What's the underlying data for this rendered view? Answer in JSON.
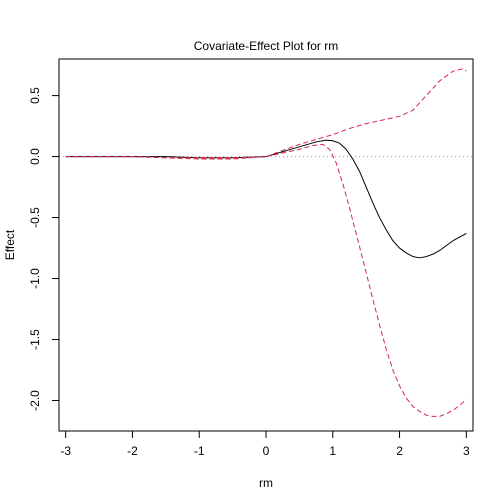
{
  "chart_data": {
    "type": "line",
    "title": "Covariate-Effect Plot for rm",
    "xlabel": "rm",
    "ylabel": "Effect",
    "xlim": [
      -3.1,
      3.1
    ],
    "ylim": [
      -2.25,
      0.8
    ],
    "x_ticks": [
      -3,
      -2,
      -1,
      0,
      1,
      2,
      3
    ],
    "x_tick_labels": [
      "-3",
      "-2",
      "-1",
      "0",
      "1",
      "2",
      "3"
    ],
    "y_ticks": [
      -2.0,
      -1.5,
      -1.0,
      -0.5,
      0.0,
      0.5
    ],
    "y_tick_labels": [
      "-2.0",
      "-1.5",
      "-1.0",
      "-0.5",
      "0.0",
      "0.5"
    ],
    "reference_line": {
      "y": 0,
      "style": "dotted",
      "color": "#999999"
    },
    "grid": false,
    "legend": "none",
    "series": [
      {
        "role": "estimate",
        "color": "#000000",
        "style": "solid",
        "x": [
          -3.0,
          -2.5,
          -2.0,
          -1.5,
          -1.0,
          -0.5,
          0.0,
          0.25,
          0.5,
          0.75,
          0.9,
          1.0,
          1.1,
          1.2,
          1.3,
          1.4,
          1.5,
          1.6,
          1.7,
          1.8,
          1.9,
          2.0,
          2.1,
          2.2,
          2.3,
          2.4,
          2.5,
          2.6,
          2.7,
          2.8,
          2.9,
          3.0
        ],
        "y": [
          0.0,
          0.0,
          0.0,
          0.0,
          -0.01,
          -0.01,
          0.0,
          0.04,
          0.08,
          0.12,
          0.135,
          0.13,
          0.11,
          0.06,
          -0.02,
          -0.12,
          -0.25,
          -0.38,
          -0.5,
          -0.6,
          -0.69,
          -0.75,
          -0.79,
          -0.82,
          -0.83,
          -0.82,
          -0.8,
          -0.77,
          -0.73,
          -0.69,
          -0.66,
          -0.63
        ]
      },
      {
        "role": "upper-band",
        "color": "#d7274b",
        "style": "dashed",
        "x": [
          -3.0,
          -2.5,
          -2.0,
          -1.5,
          -1.0,
          -0.5,
          0.0,
          0.25,
          0.5,
          0.75,
          1.0,
          1.25,
          1.5,
          1.75,
          2.0,
          2.2,
          2.4,
          2.6,
          2.8,
          2.95,
          3.0
        ],
        "y": [
          0.0,
          0.0,
          0.0,
          -0.01,
          -0.01,
          -0.01,
          0.0,
          0.05,
          0.1,
          0.14,
          0.18,
          0.23,
          0.27,
          0.3,
          0.33,
          0.38,
          0.5,
          0.62,
          0.7,
          0.72,
          0.7
        ]
      },
      {
        "role": "lower-band",
        "color": "#d7274b",
        "style": "dashed",
        "x": [
          -3.0,
          -2.5,
          -2.0,
          -1.5,
          -1.0,
          -0.5,
          0.0,
          0.25,
          0.5,
          0.7,
          0.85,
          0.95,
          1.05,
          1.15,
          1.25,
          1.35,
          1.5,
          1.6,
          1.7,
          1.8,
          1.9,
          2.0,
          2.1,
          2.2,
          2.3,
          2.4,
          2.5,
          2.6,
          2.7,
          2.8,
          2.9,
          3.0
        ],
        "y": [
          0.0,
          0.0,
          0.0,
          -0.01,
          -0.02,
          -0.02,
          0.0,
          0.03,
          0.06,
          0.09,
          0.1,
          0.06,
          -0.05,
          -0.22,
          -0.42,
          -0.63,
          -0.95,
          -1.17,
          -1.38,
          -1.58,
          -1.75,
          -1.88,
          -1.98,
          -2.05,
          -2.09,
          -2.12,
          -2.13,
          -2.13,
          -2.11,
          -2.08,
          -2.04,
          -1.99
        ]
      }
    ]
  }
}
